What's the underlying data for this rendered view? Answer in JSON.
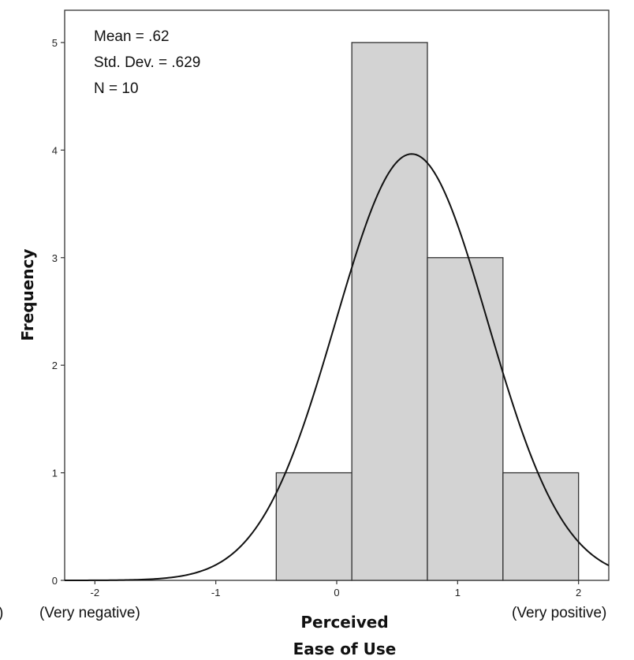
{
  "chart_data": {
    "type": "bar",
    "chart_kind": "histogram",
    "xlabel_lines": [
      "Perceived",
      "Ease of Use"
    ],
    "ylabel": "Frequency",
    "stats": [
      "Mean = .62",
      "Std. Dev. = .629",
      "N = 10"
    ],
    "x_tick_labels": [
      "-2",
      "-1",
      "0",
      "1",
      "2"
    ],
    "x_ticks": [
      -2,
      -1,
      0,
      1,
      2
    ],
    "y_tick_labels": [
      "0",
      "1",
      "2",
      "3",
      "4",
      "5"
    ],
    "y_ticks": [
      0,
      1,
      2,
      3,
      4,
      5
    ],
    "x_end_labels": {
      "left": "(Very negative)",
      "right": "(Very positive)"
    },
    "clipped_left_text": ")",
    "xlim": [
      -2.25,
      2.25
    ],
    "ylim": [
      0,
      5.3
    ],
    "bins": [
      {
        "x0": -0.5,
        "x1": 0.125,
        "count": 1
      },
      {
        "x0": 0.125,
        "x1": 0.75,
        "count": 5
      },
      {
        "x0": 0.75,
        "x1": 1.375,
        "count": 3
      },
      {
        "x0": 1.375,
        "x1": 2.0,
        "count": 1
      }
    ],
    "normal_curve": {
      "mean": 0.62,
      "std": 0.629,
      "n": 10,
      "bin_width": 0.625
    },
    "grid": false,
    "colors": {
      "bar_fill": "#d3d3d3",
      "bar_stroke": "#333333",
      "curve": "#111111",
      "axis": "#333333"
    }
  }
}
